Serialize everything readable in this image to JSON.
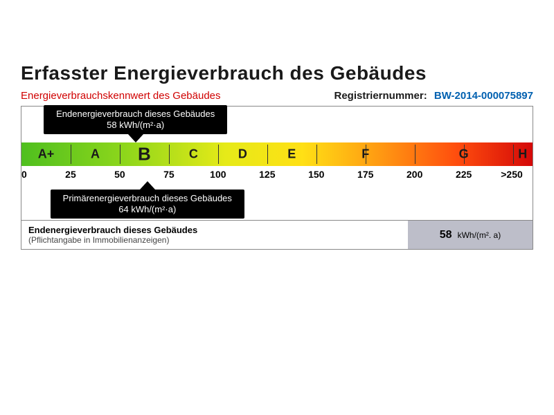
{
  "title": "Erfasster Energieverbrauch des Gebäudes",
  "subheader": {
    "left": "Energieverbrauchskennwert des Gebäudes",
    "right_label": "Registriernummer:",
    "right_value": "BW-2014-000075897"
  },
  "scale": {
    "min": 0,
    "max": 260,
    "gradient_stops": [
      {
        "pct": 0,
        "color": "#4fbf1f"
      },
      {
        "pct": 20,
        "color": "#8dd61b"
      },
      {
        "pct": 40,
        "color": "#e6ea18"
      },
      {
        "pct": 55,
        "color": "#ffe015"
      },
      {
        "pct": 70,
        "color": "#ff9a12"
      },
      {
        "pct": 85,
        "color": "#ff4e0e"
      },
      {
        "pct": 100,
        "color": "#d40808"
      }
    ],
    "dividers_at": [
      25,
      50,
      75,
      100,
      125,
      150,
      175,
      200,
      225,
      250
    ],
    "classes": [
      {
        "label": "A+",
        "value": 12.5
      },
      {
        "label": "A",
        "value": 37.5
      },
      {
        "label": "B",
        "value": 62.5
      },
      {
        "label": "C",
        "value": 87.5
      },
      {
        "label": "D",
        "value": 112.5
      },
      {
        "label": "E",
        "value": 137.5
      },
      {
        "label": "F",
        "value": 175
      },
      {
        "label": "G",
        "value": 225
      },
      {
        "label": "H",
        "value": 255
      }
    ],
    "highlighted_class": "B",
    "ticks": [
      {
        "label": "0",
        "value": 0
      },
      {
        "label": "25",
        "value": 25
      },
      {
        "label": "50",
        "value": 50
      },
      {
        "label": "75",
        "value": 75
      },
      {
        "label": "100",
        "value": 100
      },
      {
        "label": "125",
        "value": 125
      },
      {
        "label": "150",
        "value": 150
      },
      {
        "label": "175",
        "value": 175
      },
      {
        "label": "200",
        "value": 200
      },
      {
        "label": "225",
        "value": 225
      },
      {
        "label": ">250",
        "value": 255
      }
    ]
  },
  "callout_top": {
    "line1": "Endenergieverbrauch dieses Gebäudes",
    "line2": "58 kWh/(m²·a)",
    "value": 58
  },
  "callout_bottom": {
    "line1": "Primärenergieverbrauch dieses Gebäudes",
    "line2": "64 kWh/(m²·a)",
    "value": 64
  },
  "summary": {
    "line1": "Endenergieverbrauch dieses Gebäudes",
    "line2": "(Pflichtangabe in Immobilienanzeigen)",
    "value": "58",
    "unit": "kWh/(m². a)"
  },
  "colors": {
    "accent_red": "#d00000",
    "accent_blue": "#0060b0",
    "summary_bg": "#bdbec9"
  }
}
